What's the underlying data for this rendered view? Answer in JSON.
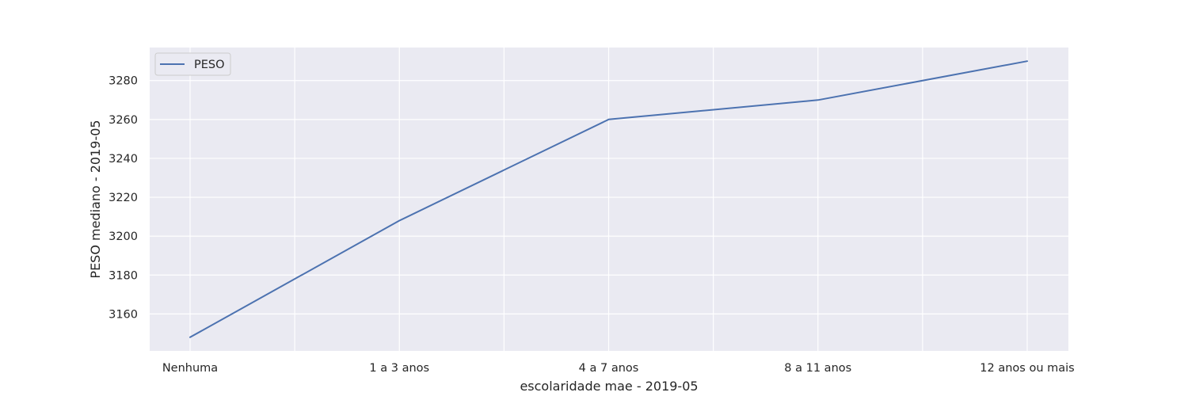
{
  "chart_data": {
    "type": "line",
    "categories": [
      "Nenhuma",
      "1 a 3 anos",
      "4 a 7 anos",
      "8 a 11 anos",
      "12 anos ou mais"
    ],
    "series": [
      {
        "name": "PESO",
        "values": [
          3148,
          3208,
          3260,
          3270,
          3290
        ],
        "color": "#4c72b0"
      }
    ],
    "title": "",
    "xlabel": "escolaridade mae - 2019-05",
    "ylabel": "PESO mediano - 2019-05",
    "ylim": [
      3141,
      3297
    ],
    "yticks": [
      3160,
      3180,
      3200,
      3220,
      3240,
      3260,
      3280
    ],
    "grid": true,
    "legend": "top-left",
    "colors": {
      "background": "#eaeaf2",
      "grid": "#ffffff",
      "line": "#4c72b0"
    }
  }
}
